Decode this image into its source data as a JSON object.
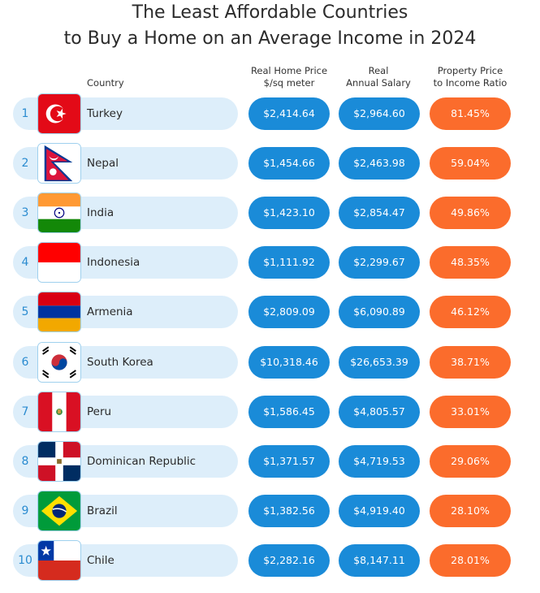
{
  "title_line1": "The Least Affordable Countries",
  "title_line2": "to Buy a Home on an Average Income in 2024",
  "headers": {
    "country": "Country",
    "price_line1": "Real Home Price",
    "price_line2": "$/sq meter",
    "salary_line1": "Real",
    "salary_line2": "Annual Salary",
    "ratio_line1": "Property Price",
    "ratio_line2": "to Income Ratio"
  },
  "colors": {
    "row_bar": "#ddeefa",
    "price_pill": "#1a8bd8",
    "salary_pill": "#1a8bd8",
    "ratio_pill": "#fb6c2c",
    "rank_text": "#2a8bd0"
  },
  "chart_data": {
    "type": "table",
    "columns": [
      "",
      "Country",
      "Real Home Price $/sq meter",
      "Real Annual Salary",
      "Property Price to Income Ratio"
    ],
    "rows": [
      {
        "rank": "1",
        "country": "Turkey",
        "flag": "turkey-flag-icon",
        "price": "$2,414.64",
        "salary": "$2,964.60",
        "ratio": "81.45%"
      },
      {
        "rank": "2",
        "country": "Nepal",
        "flag": "nepal-flag-icon",
        "price": "$1,454.66",
        "salary": "$2,463.98",
        "ratio": "59.04%"
      },
      {
        "rank": "3",
        "country": "India",
        "flag": "india-flag-icon",
        "price": "$1,423.10",
        "salary": "$2,854.47",
        "ratio": "49.86%"
      },
      {
        "rank": "4",
        "country": "Indonesia",
        "flag": "indonesia-flag-icon",
        "price": "$1,111.92",
        "salary": "$2,299.67",
        "ratio": "48.35%"
      },
      {
        "rank": "5",
        "country": "Armenia",
        "flag": "armenia-flag-icon",
        "price": "$2,809.09",
        "salary": "$6,090.89",
        "ratio": "46.12%"
      },
      {
        "rank": "6",
        "country": "South Korea",
        "flag": "south-korea-flag-icon",
        "price": "$10,318.46",
        "salary": "$26,653.39",
        "ratio": "38.71%"
      },
      {
        "rank": "7",
        "country": "Peru",
        "flag": "peru-flag-icon",
        "price": "$1,586.45",
        "salary": "$4,805.57",
        "ratio": "33.01%"
      },
      {
        "rank": "8",
        "country": "Dominican Republic",
        "flag": "dominican-republic-flag-icon",
        "price": "$1,371.57",
        "salary": "$4,719.53",
        "ratio": "29.06%"
      },
      {
        "rank": "9",
        "country": "Brazil",
        "flag": "brazil-flag-icon",
        "price": "$1,382.56",
        "salary": "$4,919.40",
        "ratio": "28.10%"
      },
      {
        "rank": "10",
        "country": "Chile",
        "flag": "chile-flag-icon",
        "price": "$2,282.16",
        "salary": "$8,147.11",
        "ratio": "28.01%"
      }
    ]
  }
}
